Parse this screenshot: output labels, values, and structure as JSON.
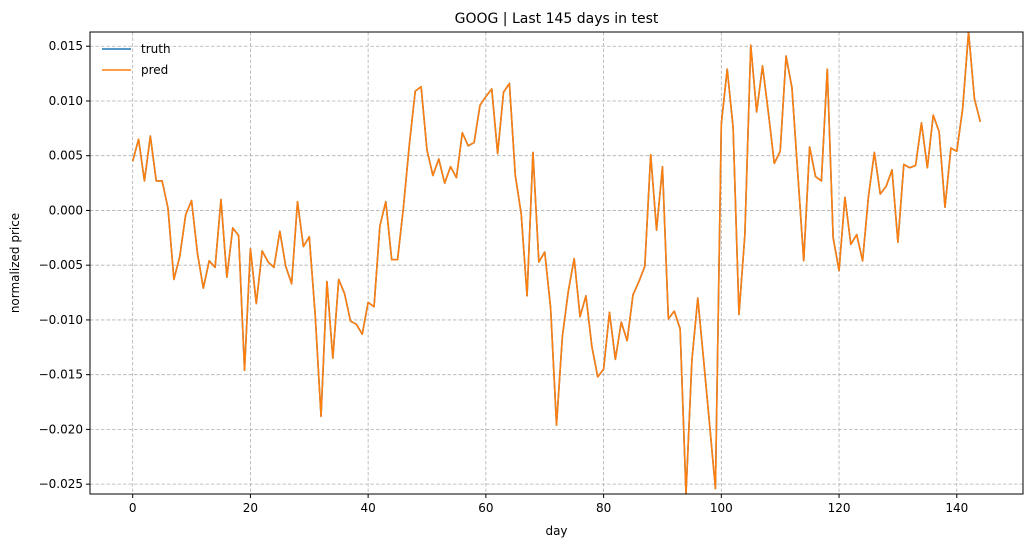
{
  "chart_data": {
    "type": "line",
    "title": "GOOG | Last 145 days in test",
    "xlabel": "day",
    "ylabel": "normalized price",
    "xlim": [
      -7.25,
      151.25
    ],
    "ylim": [
      -0.0259,
      0.0163
    ],
    "x_ticks": [
      0,
      20,
      40,
      60,
      80,
      100,
      120,
      140
    ],
    "y_ticks": [
      -0.025,
      -0.02,
      -0.015,
      -0.01,
      -0.005,
      0.0,
      0.005,
      0.01,
      0.015
    ],
    "y_tick_labels": [
      "−0.025",
      "−0.020",
      "−0.015",
      "−0.010",
      "−0.005",
      "0.000",
      "0.005",
      "0.010",
      "0.015"
    ],
    "grid": true,
    "legend_position": "top-left",
    "colors": {
      "truth": "#1f77b4",
      "pred": "#ff7f0e"
    },
    "series": [
      {
        "name": "truth",
        "values": [
          0.0045,
          0.0065,
          0.0027,
          0.0068,
          0.0027,
          0.0027,
          0.0002,
          -0.0063,
          -0.0042,
          -0.0004,
          0.0009,
          -0.0039,
          -0.0071,
          -0.0046,
          -0.0052,
          0.001,
          -0.0061,
          -0.0016,
          -0.0023,
          -0.0146,
          -0.0035,
          -0.0085,
          -0.0037,
          -0.0047,
          -0.0052,
          -0.0019,
          -0.0051,
          -0.0067,
          0.0008,
          -0.0033,
          -0.0024,
          -0.0095,
          -0.0188,
          -0.0065,
          -0.0135,
          -0.0063,
          -0.0076,
          -0.0101,
          -0.0104,
          -0.0113,
          -0.0084,
          -0.0088,
          -0.0014,
          0.0008,
          -0.0045,
          -0.0045,
          0.0003,
          0.006,
          0.0109,
          0.0113,
          0.0055,
          0.0032,
          0.0047,
          0.0025,
          0.004,
          0.003,
          0.0071,
          0.0059,
          0.0062,
          0.0096,
          0.0104,
          0.0111,
          0.0052,
          0.0108,
          0.0116,
          0.0032,
          -0.0003,
          -0.0078,
          0.0053,
          -0.0047,
          -0.0038,
          -0.0089,
          -0.0196,
          -0.0115,
          -0.0074,
          -0.0044,
          -0.0097,
          -0.0078,
          -0.0124,
          -0.0152,
          -0.0145,
          -0.0093,
          -0.0136,
          -0.0102,
          -0.0119,
          -0.0077,
          -0.0065,
          -0.0051,
          0.0051,
          -0.0018,
          0.004,
          -0.0099,
          -0.0092,
          -0.0108,
          -0.0259,
          -0.0137,
          -0.008,
          -0.0137,
          -0.0195,
          -0.0254,
          0.0079,
          0.0129,
          0.0076,
          -0.0095,
          -0.0022,
          0.0151,
          0.009,
          0.0132,
          0.0089,
          0.0043,
          0.0054,
          0.0141,
          0.0112,
          0.0033,
          -0.0046,
          0.0058,
          0.0031,
          0.0027,
          0.0129,
          -0.0025,
          -0.0055,
          0.0012,
          -0.0031,
          -0.0022,
          -0.0046,
          0.0013,
          0.0053,
          0.0015,
          0.0022,
          0.0037,
          -0.0029,
          0.0042,
          0.0039,
          0.0041,
          0.008,
          0.0039,
          0.0087,
          0.0072,
          0.0003,
          0.0057,
          0.0054,
          0.0093,
          0.0163,
          0.0102,
          0.0081
        ]
      },
      {
        "name": "pred",
        "values": [
          0.0045,
          0.0065,
          0.0027,
          0.0068,
          0.0027,
          0.0027,
          0.0002,
          -0.0063,
          -0.0042,
          -0.0004,
          0.0009,
          -0.0039,
          -0.0071,
          -0.0046,
          -0.0052,
          0.001,
          -0.0061,
          -0.0016,
          -0.0023,
          -0.0146,
          -0.0035,
          -0.0085,
          -0.0037,
          -0.0047,
          -0.0052,
          -0.0019,
          -0.0051,
          -0.0067,
          0.0008,
          -0.0033,
          -0.0024,
          -0.0095,
          -0.0188,
          -0.0065,
          -0.0135,
          -0.0063,
          -0.0076,
          -0.0101,
          -0.0104,
          -0.0113,
          -0.0084,
          -0.0088,
          -0.0014,
          0.0008,
          -0.0045,
          -0.0045,
          0.0003,
          0.006,
          0.0109,
          0.0113,
          0.0055,
          0.0032,
          0.0047,
          0.0025,
          0.004,
          0.003,
          0.0071,
          0.0059,
          0.0062,
          0.0096,
          0.0104,
          0.0111,
          0.0052,
          0.0108,
          0.0116,
          0.0032,
          -0.0003,
          -0.0078,
          0.0053,
          -0.0047,
          -0.0038,
          -0.0089,
          -0.0196,
          -0.0115,
          -0.0074,
          -0.0044,
          -0.0097,
          -0.0078,
          -0.0124,
          -0.0152,
          -0.0145,
          -0.0093,
          -0.0136,
          -0.0102,
          -0.0119,
          -0.0077,
          -0.0065,
          -0.0051,
          0.0051,
          -0.0018,
          0.004,
          -0.0099,
          -0.0092,
          -0.0108,
          -0.0259,
          -0.0137,
          -0.008,
          -0.0137,
          -0.0195,
          -0.0254,
          0.0079,
          0.0129,
          0.0076,
          -0.0095,
          -0.0022,
          0.0151,
          0.009,
          0.0132,
          0.0089,
          0.0043,
          0.0054,
          0.0141,
          0.0112,
          0.0033,
          -0.0046,
          0.0058,
          0.0031,
          0.0027,
          0.0129,
          -0.0025,
          -0.0055,
          0.0012,
          -0.0031,
          -0.0022,
          -0.0046,
          0.0013,
          0.0053,
          0.0015,
          0.0022,
          0.0037,
          -0.0029,
          0.0042,
          0.0039,
          0.0041,
          0.008,
          0.0039,
          0.0087,
          0.0072,
          0.0003,
          0.0057,
          0.0054,
          0.0093,
          0.0163,
          0.0102,
          0.0081
        ]
      }
    ]
  }
}
